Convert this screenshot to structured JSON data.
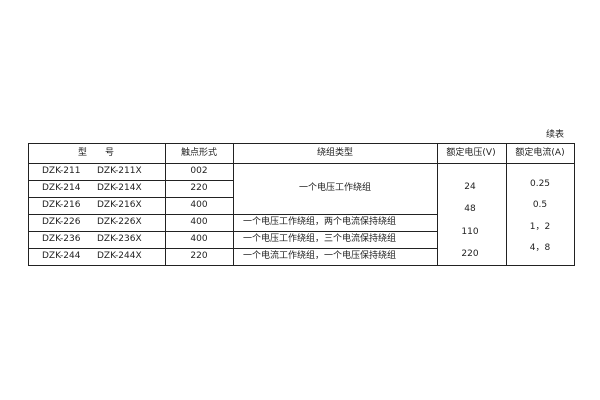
{
  "caption": "续表",
  "headers": [
    "型　　号",
    "触点形式",
    "绕组类型",
    "额定电压(V)",
    "额定电流(A)"
  ],
  "rows": [
    {
      "model": "DZK-211",
      "model_x": "DZK-211X",
      "contact": "002"
    },
    {
      "model": "DZK-214",
      "model_x": "DZK-214X",
      "contact": "220"
    },
    {
      "model": "DZK-216",
      "model_x": "DZK-216X",
      "contact": "400"
    },
    {
      "model": "DZK-226",
      "model_x": "DZK-226X",
      "contact": "400",
      "winding": "一个电压工作绕组，两个电流保持绕组"
    },
    {
      "model": "DZK-236",
      "model_x": "DZK-236X",
      "contact": "400",
      "winding": "一个电压工作绕组，三个电流保持绕组"
    },
    {
      "model": "DZK-244",
      "model_x": "DZK-244X",
      "contact": "220",
      "winding": "一个电流工作绕组，一个电压保持绕组"
    }
  ],
  "merged_winding": "一个电压工作绕组",
  "voltages": [
    "24",
    "48",
    "110",
    "220"
  ],
  "currents": [
    "0.25",
    "0.5",
    "1，2",
    "4，8"
  ]
}
